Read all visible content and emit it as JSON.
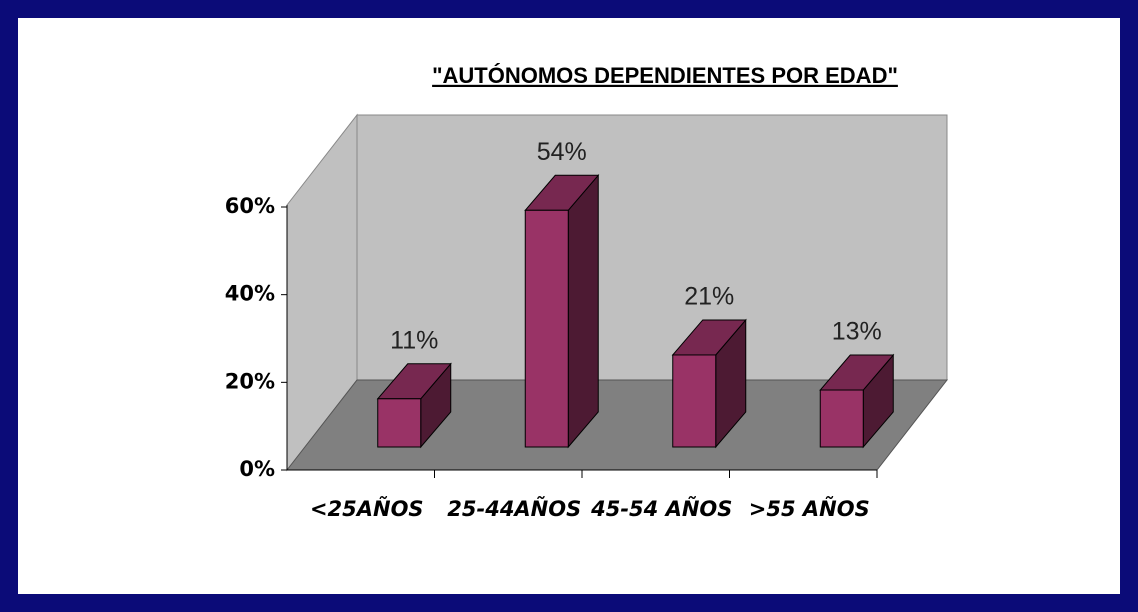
{
  "chart_data": {
    "type": "bar3d",
    "title": "\"AUTÓNOMOS DEPENDIENTES POR EDAD\"",
    "categories": [
      "<25AÑOS",
      "25-44AÑOS",
      "45-54 AÑOS",
      ">55 AÑOS"
    ],
    "values": [
      11,
      54,
      21,
      13
    ],
    "value_labels": [
      "11%",
      "54%",
      "21%",
      "13%"
    ],
    "color": "#993366",
    "ylim": [
      0,
      60
    ],
    "yticks": [
      {
        "value": 0,
        "label": "0%"
      },
      {
        "value": 20,
        "label": "20%"
      },
      {
        "value": 40,
        "label": "40%"
      },
      {
        "value": 60,
        "label": "60%"
      }
    ],
    "grid": false
  }
}
